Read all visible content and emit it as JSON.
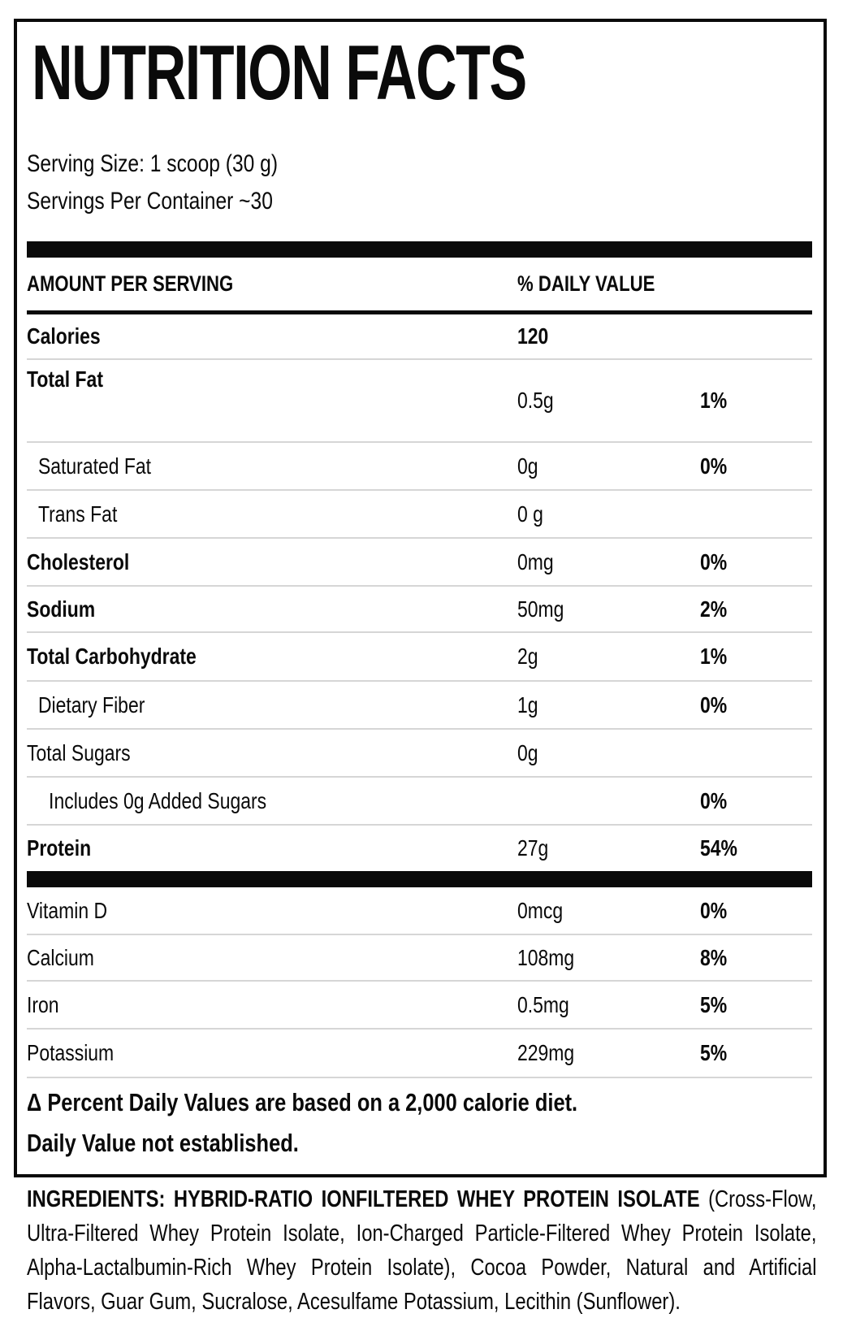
{
  "page": {
    "background": "#ffffff",
    "text_color": "#0a0a0a",
    "separator_color": "#d6d6d6",
    "bar_color": "#000000"
  },
  "label": {
    "title": "NUTRITION FACTS",
    "serving_size": "Serving Size: 1 scoop (30 g)",
    "servings_per_container": "Servings Per Container ~30",
    "header": {
      "amount": "AMOUNT PER SERVING",
      "daily_value": "% DAILY VALUE"
    },
    "rows": [
      {
        "label": "Calories",
        "amount": "120",
        "dv": ""
      },
      {
        "label": "Total Fat",
        "amount": "0.5g",
        "dv": "1%"
      },
      {
        "label": "Saturated Fat",
        "amount": "0g",
        "dv": "0%"
      },
      {
        "label": "Trans Fat",
        "amount": "0 g",
        "dv": ""
      },
      {
        "label": "Cholesterol",
        "amount": "0mg",
        "dv": "0%"
      },
      {
        "label": "Sodium",
        "amount": "50mg",
        "dv": "2%"
      },
      {
        "label": "Total Carbohydrate",
        "amount": "2g",
        "dv": "1%"
      },
      {
        "label": "Dietary Fiber",
        "amount": "1g",
        "dv": "0%"
      },
      {
        "label": "Total Sugars",
        "amount": "0g",
        "dv": ""
      },
      {
        "label": "Includes 0g Added Sugars",
        "amount": "",
        "dv": "0%"
      },
      {
        "label": "Protein",
        "amount": "27g",
        "dv": "54%"
      },
      {
        "label": "Vitamin D",
        "amount": "0mcg",
        "dv": "0%"
      },
      {
        "label": "Calcium",
        "amount": "108mg",
        "dv": "8%"
      },
      {
        "label": "Iron",
        "amount": "0.5mg",
        "dv": "5%"
      },
      {
        "label": "Potassium",
        "amount": "229mg",
        "dv": "5%"
      }
    ],
    "footnotes": [
      "Δ Percent Daily Values are based on a 2,000 calorie diet.",
      "Daily Value not established."
    ]
  },
  "ingredients": {
    "line1_bold": "INGREDIENTS: HYBRID-RATIO IONFILTERED WHEY PROTEIN ISOLATE",
    "line1_rest": "(Cross-Flow,",
    "line2": "Ultra-Filtered Whey Protein Isolate, Ion-Charged Particle-Filtered Whey Protein Isolate,",
    "line3": "Alpha-Lactalbumin-Rich Whey Protein Isolate), Cocoa Powder, Natural and Artificial",
    "line4": "Flavors, Guar Gum, Sucralose, Acesulfame Potassium, Lecithin (Sunflower)."
  }
}
